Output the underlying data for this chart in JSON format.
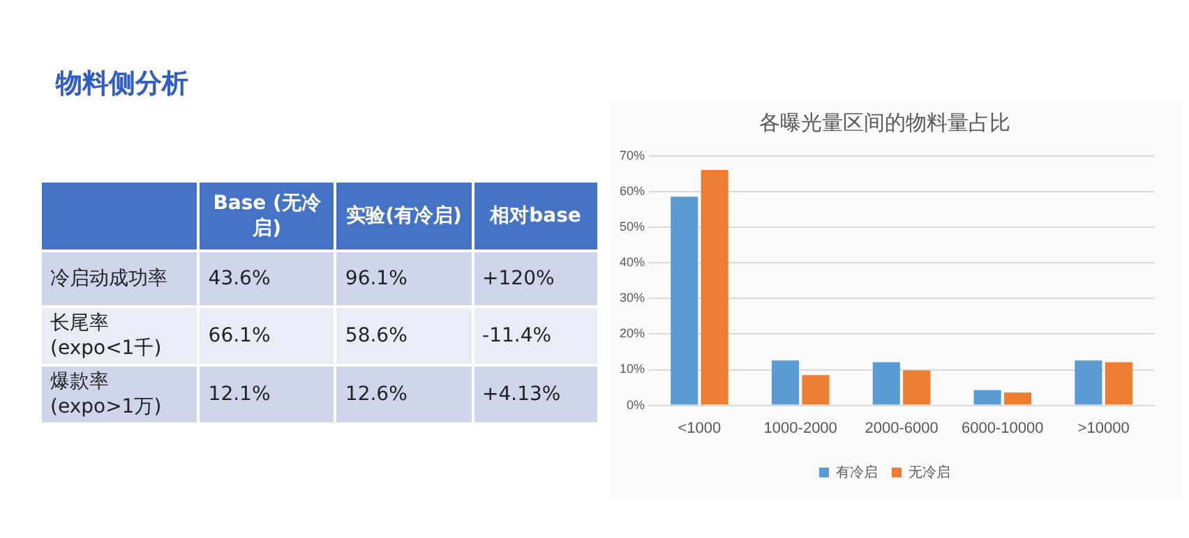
{
  "chart_data": [
    {
      "type": "other",
      "title": "物料侧分析",
      "annotations": [
        "Base (无冷启)",
        "实验(有冷启)",
        "相对base",
        "冷启动成功率",
        "43.6%",
        "96.1%",
        "+120%",
        "长尾率 (expo<1千)",
        "66.1%",
        "58.6%",
        "-11.4%",
        "爆款率 (expo>1万)",
        "12.1%",
        "12.6%",
        "+4.13%"
      ]
    },
    {
      "type": "bar",
      "title": "各曝光量区间的物料量占比",
      "categories": [
        "<1000",
        "1000-2000",
        "2000-6000",
        "6000-10000",
        ">10000"
      ],
      "series": [
        {
          "name": "有冷启",
          "color": "#5b9bd5",
          "values": [
            58.6,
            12.6,
            12.1,
            4.3,
            12.6
          ]
        },
        {
          "name": "无冷启",
          "color": "#ed7d31",
          "values": [
            66.1,
            8.5,
            9.8,
            3.6,
            12.1
          ]
        }
      ],
      "ylim": [
        0,
        70
      ],
      "yticks": [
        {
          "value": 0,
          "label": "0%"
        },
        {
          "value": 10,
          "label": "10%"
        },
        {
          "value": 20,
          "label": "20%"
        },
        {
          "value": 30,
          "label": "30%"
        },
        {
          "value": 40,
          "label": "40%"
        },
        {
          "value": 50,
          "label": "50%"
        },
        {
          "value": 60,
          "label": "60%"
        },
        {
          "value": 70,
          "label": "70%"
        }
      ],
      "grid": "y",
      "legend": "bottom"
    }
  ]
}
